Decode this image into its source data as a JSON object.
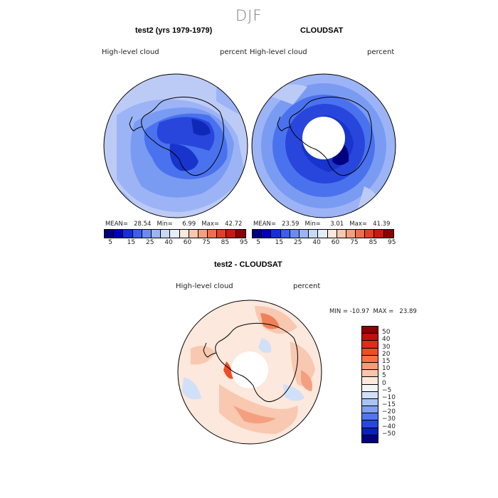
{
  "page_title": "DJF",
  "panels": [
    {
      "title": "test2 (yrs 1979-1979)",
      "left_label": "High-level  cloud",
      "right_label": "percent",
      "stats": "MEAN=   28.54   Min=     6.99   Max=   42.72",
      "hole": false
    },
    {
      "title": "CLOUDSAT",
      "left_label": "High-level  cloud",
      "right_label": "percent",
      "stats": "MEAN=   23.59   Min=     3.01   Max=   41.39",
      "hole": true
    }
  ],
  "colorbar": {
    "colors": [
      "#000080",
      "#0000b8",
      "#1430d8",
      "#3a60ec",
      "#6a8cf2",
      "#9cb4f6",
      "#c8d8f8",
      "#e6ecf8",
      "#fce8dc",
      "#f8c8b0",
      "#f4a080",
      "#ec7050",
      "#e04028",
      "#c81810",
      "#8c0000"
    ],
    "ticks": [
      "5",
      "15",
      "25",
      "40",
      "60",
      "75",
      "85",
      "95"
    ]
  },
  "diff": {
    "title": "test2 - CLOUDSAT",
    "left_label": "High-level  cloud",
    "right_label": "percent",
    "minmax": "MIN = -10.97  MAX =   23.89",
    "colorbar_colors": [
      "#8c0000",
      "#c01008",
      "#e02c18",
      "#f04c28",
      "#f87048",
      "#f89c78",
      "#fcc4a8",
      "#fce8dc",
      "#f4f4f4",
      "#d0e0f8",
      "#a8c4f4",
      "#80a0f0",
      "#5078ec",
      "#2848dc",
      "#0820c0",
      "#000080"
    ],
    "colorbar_labels": [
      "50",
      "40",
      "30",
      "20",
      "15",
      "10",
      "5",
      "0",
      "−5",
      "−10",
      "−15",
      "−20",
      "−30",
      "−40",
      "−50"
    ]
  }
}
